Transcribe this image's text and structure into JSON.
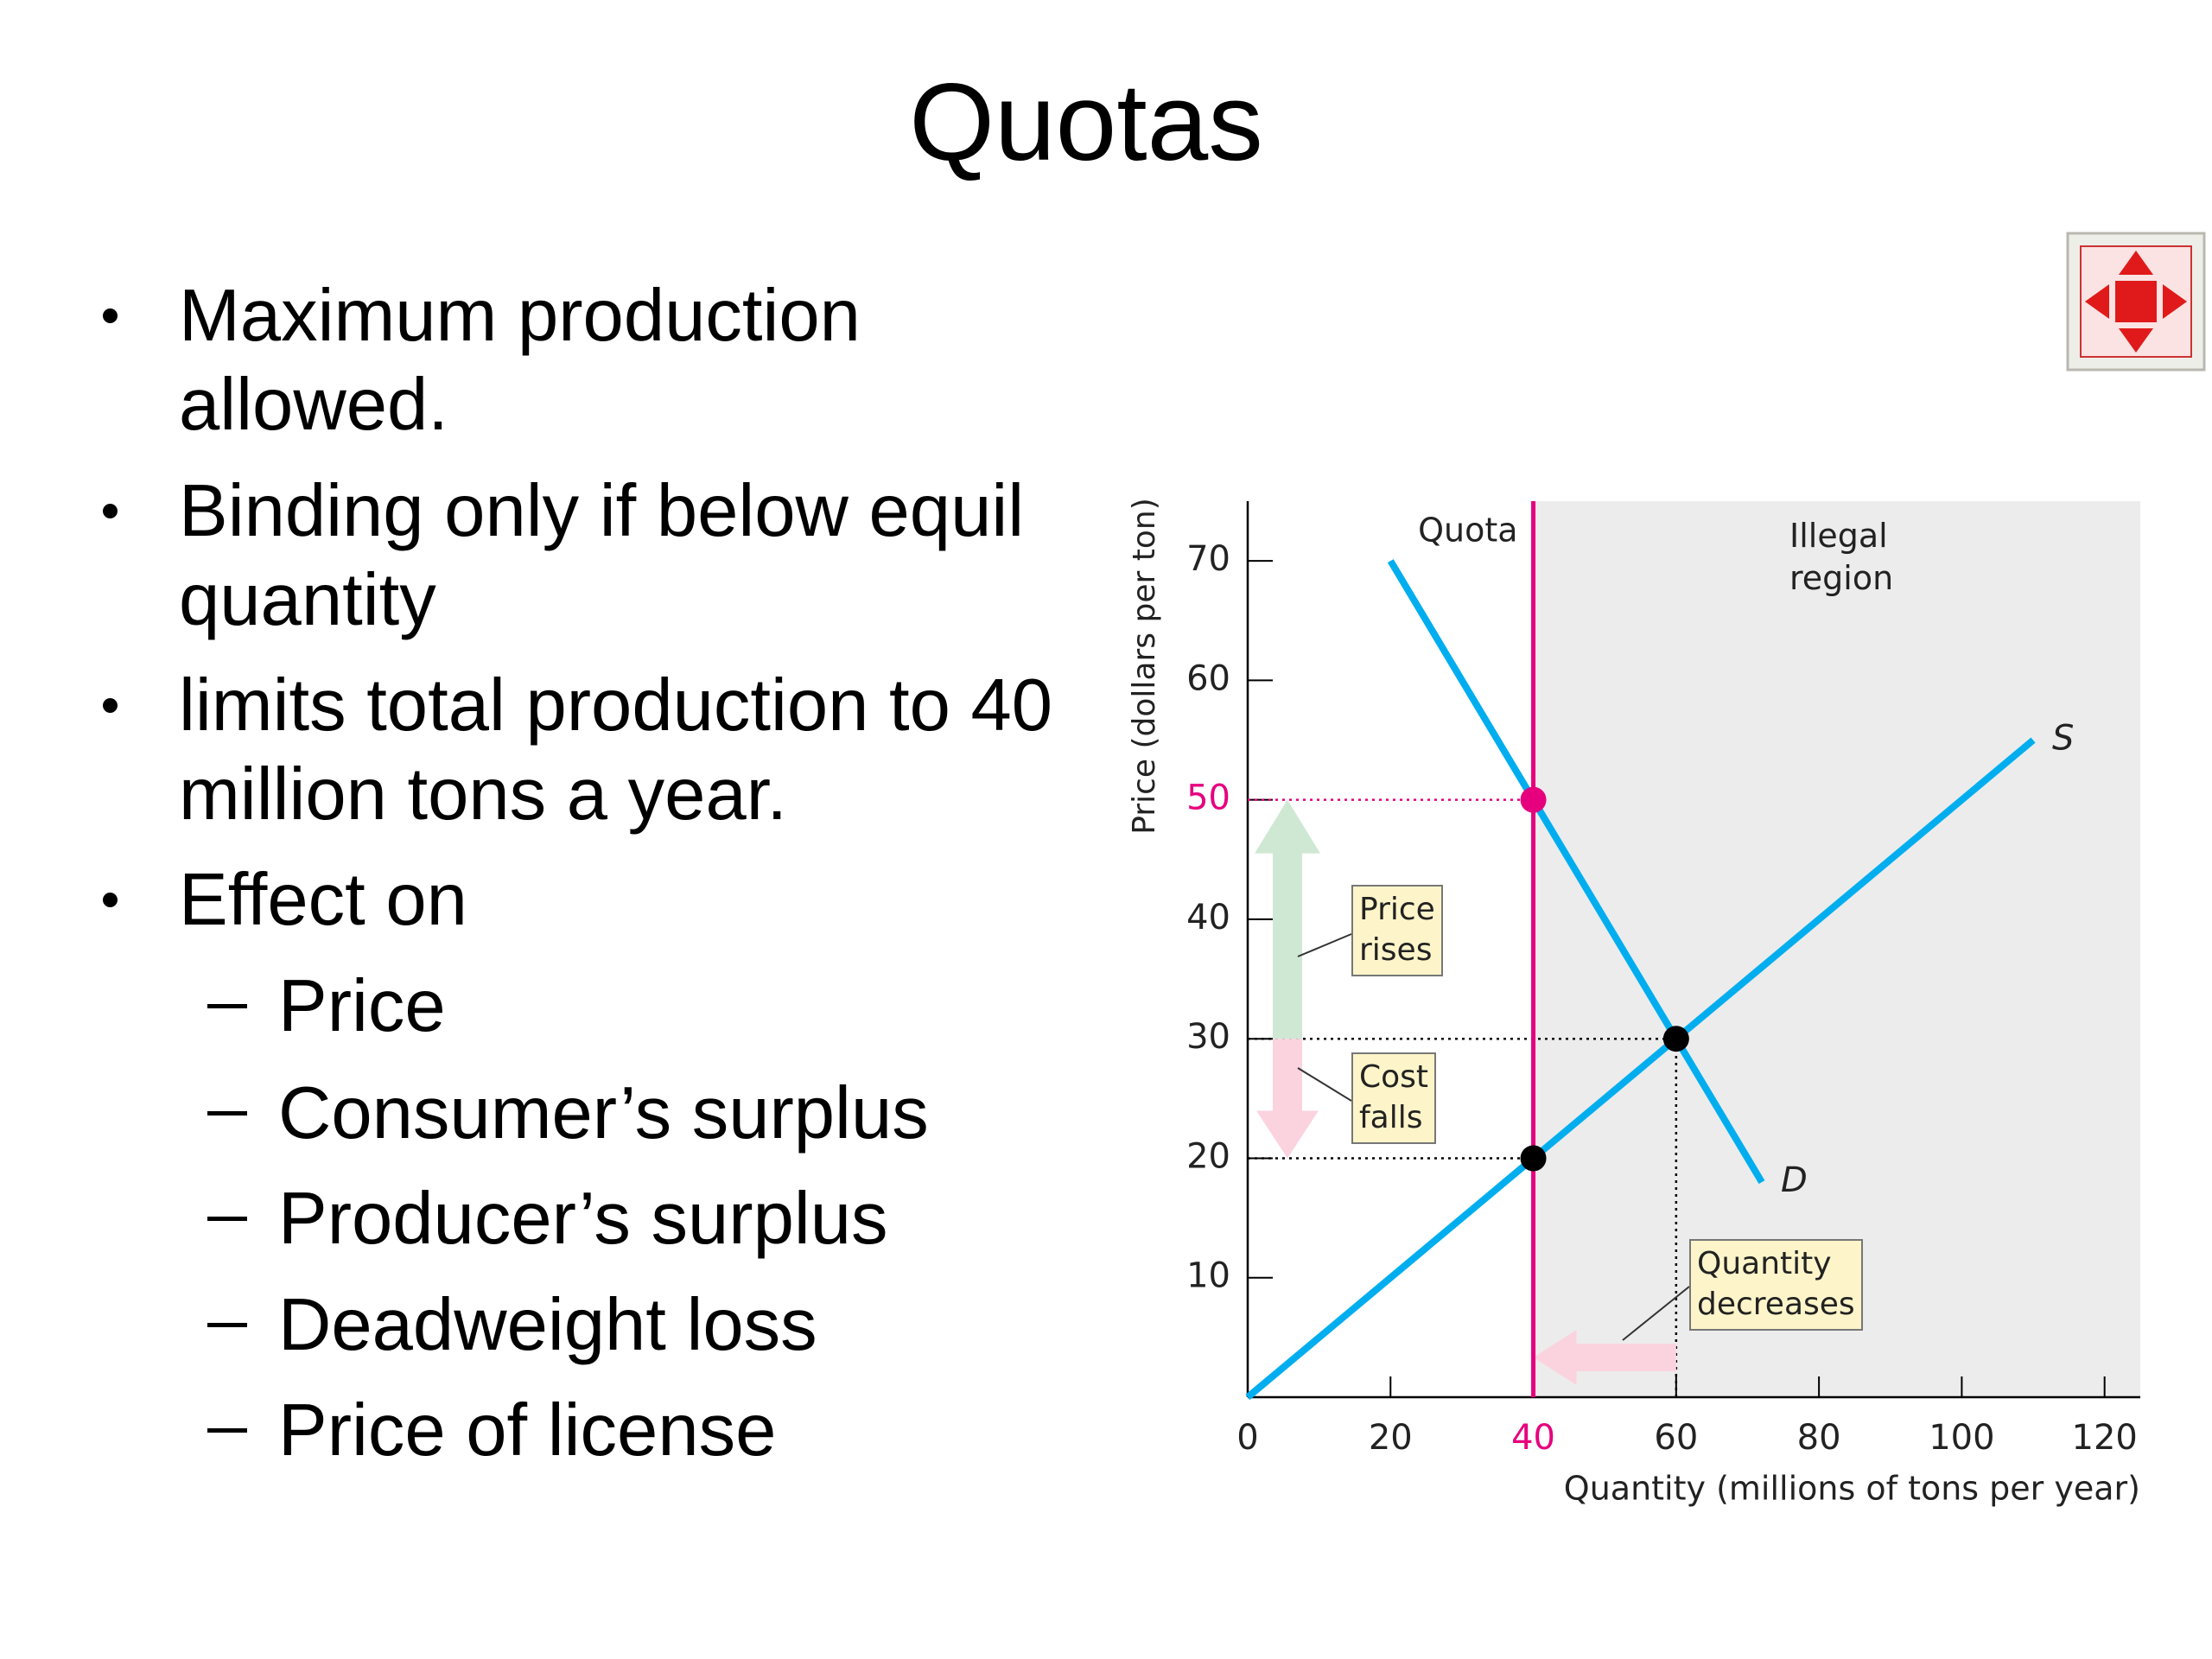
{
  "title": "Quotas",
  "bullets": [
    {
      "text": "Maximum production allowed."
    },
    {
      "text": "Binding only if below equil quantity"
    },
    {
      "text": "limits total production to 40 million tons a year."
    },
    {
      "text": "Effect on",
      "subitems": [
        "Price",
        "Consumer’s surplus",
        "Producer’s surplus",
        "Deadweight loss",
        "Price of license"
      ]
    }
  ],
  "chart_data": {
    "type": "line",
    "xlabel": "Quantity (millions of tons per year)",
    "ylabel": "Price (dollars per ton)",
    "xlim": [
      0,
      125
    ],
    "ylim": [
      0,
      75
    ],
    "xticks": [
      0,
      20,
      40,
      60,
      80,
      100,
      120
    ],
    "yticks": [
      10,
      20,
      30,
      40,
      50,
      60,
      70
    ],
    "series": [
      {
        "name": "D",
        "color": "#00aeef",
        "x": [
          20,
          72
        ],
        "values": [
          70,
          18
        ]
      },
      {
        "name": "S",
        "color": "#00aeef",
        "x": [
          0,
          110
        ],
        "values": [
          0,
          55
        ]
      }
    ],
    "quota": {
      "label": "Quota",
      "x": 40,
      "price": 50,
      "color": "#e6007e"
    },
    "illegal_region": {
      "label": "Illegal region",
      "color": "#ececec"
    },
    "points": [
      {
        "x": 60,
        "y": 30
      },
      {
        "x": 40,
        "y": 20
      }
    ],
    "point_color": "#000000",
    "annotations": [
      {
        "text": "Price rises"
      },
      {
        "text": "Cost falls"
      },
      {
        "text": "Quantity decreases"
      }
    ],
    "annotation_color": "#fdf5c9",
    "arrow_colors": {
      "rise": "#cfe8d3",
      "fall": "#fbd3df"
    }
  }
}
